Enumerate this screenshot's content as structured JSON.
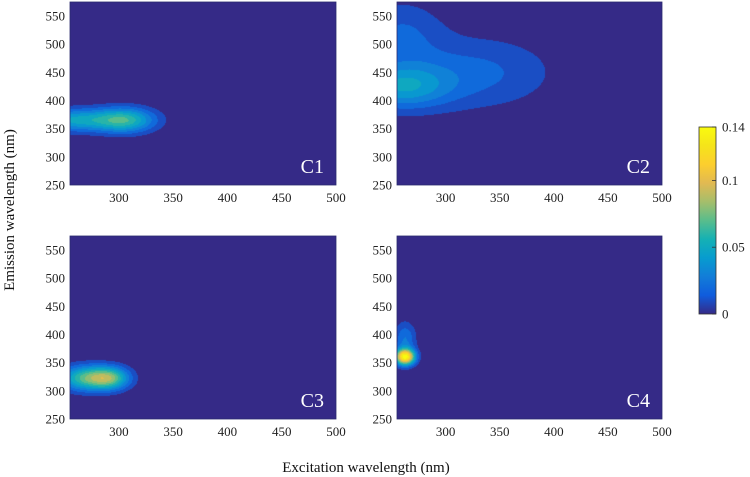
{
  "chart_data": {
    "type": "heatmap",
    "subtype": "filled-contour",
    "xlabel": "Excitation wavelength (nm)",
    "ylabel": "Emission wavelength (nm)",
    "xlim": [
      255,
      500
    ],
    "ylim": [
      250,
      575
    ],
    "xticks": [
      300,
      350,
      400,
      450,
      500
    ],
    "yticks": [
      250,
      300,
      350,
      400,
      450,
      500,
      550
    ],
    "colorbar": {
      "min": 0,
      "max": 0.14,
      "ticks": [
        0,
        0.05,
        0.1,
        0.14
      ],
      "tick_labels": [
        "0",
        "0.05",
        "0.1",
        "0.14"
      ]
    },
    "panels": [
      {
        "name": "C1",
        "label": "C1",
        "peaks": [
          {
            "ex": 305,
            "em": 365,
            "intensity": 0.065,
            "sx": 28,
            "sy": 22
          },
          {
            "ex": 258,
            "em": 365,
            "intensity": 0.05,
            "sx": 35,
            "sy": 20
          }
        ]
      },
      {
        "name": "C2",
        "label": "C2",
        "peaks": [
          {
            "ex": 258,
            "em": 425,
            "intensity": 0.045,
            "sx": 45,
            "sy": 40
          },
          {
            "ex": 330,
            "em": 450,
            "intensity": 0.022,
            "sx": 70,
            "sy": 65
          },
          {
            "ex": 258,
            "em": 520,
            "intensity": 0.02,
            "sx": 40,
            "sy": 60
          }
        ]
      },
      {
        "name": "C3",
        "label": "C3",
        "peaks": [
          {
            "ex": 270,
            "em": 322,
            "intensity": 0.07,
            "sx": 25,
            "sy": 22
          },
          {
            "ex": 292,
            "em": 322,
            "intensity": 0.06,
            "sx": 18,
            "sy": 20
          }
        ]
      },
      {
        "name": "C4",
        "label": "C4",
        "peaks": [
          {
            "ex": 262,
            "em": 360,
            "intensity": 0.14,
            "sx": 9,
            "sy": 14
          },
          {
            "ex": 262,
            "em": 392,
            "intensity": 0.03,
            "sx": 10,
            "sy": 30
          }
        ]
      }
    ]
  }
}
